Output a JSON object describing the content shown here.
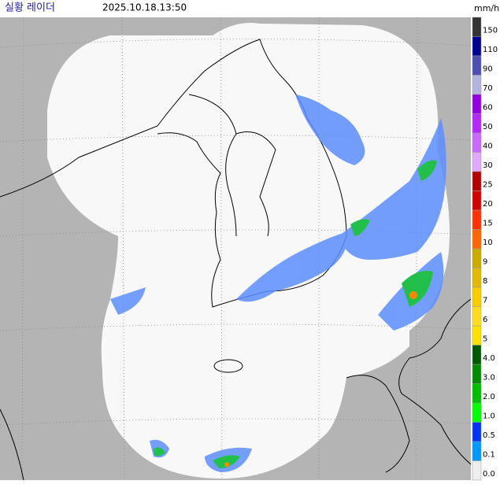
{
  "header": {
    "title": "실황 레이더",
    "timestamp": "2025.10.18.13:50"
  },
  "legend": {
    "unit": "mm/h",
    "items": [
      {
        "label": "150",
        "color": "#333333"
      },
      {
        "label": "110",
        "color": "#000390"
      },
      {
        "label": "90",
        "color": "#4c4eb1"
      },
      {
        "label": "70",
        "color": "#b3b4de"
      },
      {
        "label": "60",
        "color": "#9300e4"
      },
      {
        "label": "50",
        "color": "#b329ff"
      },
      {
        "label": "40",
        "color": "#c969ff"
      },
      {
        "label": "30",
        "color": "#e0a9ff"
      },
      {
        "label": "25",
        "color": "#b40000"
      },
      {
        "label": "20",
        "color": "#d20000"
      },
      {
        "label": "15",
        "color": "#ff3200"
      },
      {
        "label": "10",
        "color": "#ff6600"
      },
      {
        "label": "9",
        "color": "#ccaa00"
      },
      {
        "label": "8",
        "color": "#e0b900"
      },
      {
        "label": "7",
        "color": "#f9cd00"
      },
      {
        "label": "6",
        "color": "#ffdc1f"
      },
      {
        "label": "5",
        "color": "#ffe100"
      },
      {
        "label": "4.0",
        "color": "#005a00"
      },
      {
        "label": "3.0",
        "color": "#008c00"
      },
      {
        "label": "2.0",
        "color": "#00be00"
      },
      {
        "label": "1.0",
        "color": "#00ff00"
      },
      {
        "label": "0.5",
        "color": "#0033f5"
      },
      {
        "label": "0.1",
        "color": "#0099ff"
      },
      {
        "label": "0.0",
        "color": "#eeeeee"
      }
    ]
  }
}
